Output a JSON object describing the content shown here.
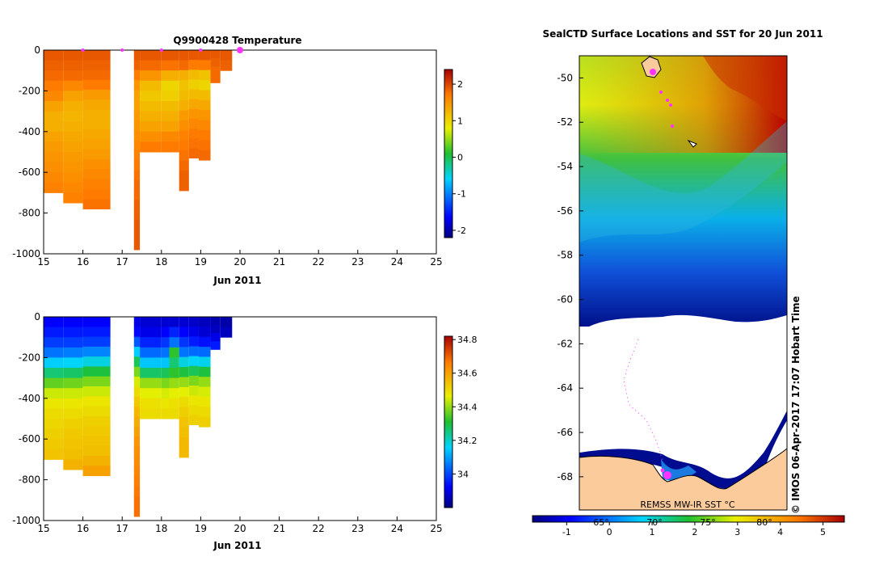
{
  "chart_data": [
    {
      "type": "heatmap",
      "title": "Q9900428  Temperature",
      "xlabel": "Jun 2011",
      "ylabel": "",
      "xlim": [
        15,
        25
      ],
      "ylim": [
        -1000,
        0
      ],
      "xticks": [
        "15",
        "16",
        "17",
        "18",
        "19",
        "20",
        "21",
        "22",
        "23",
        "24",
        "25"
      ],
      "yticks": [
        "0",
        "-200",
        "-400",
        "-600",
        "-800",
        "-1000"
      ],
      "colorbar": {
        "min": -2.2,
        "max": 2.4,
        "ticks": [
          "2",
          "1",
          "0",
          "-1",
          "-2"
        ],
        "tick_values": [
          2,
          1,
          0,
          -1,
          -2
        ]
      },
      "profiles": [
        {
          "x0": 15.0,
          "x1": 15.5,
          "depth": 700,
          "values": [
            1.9,
            1.85,
            1.8,
            1.7,
            1.6,
            1.4,
            1.3,
            1.3,
            1.4,
            1.45,
            1.5,
            1.55,
            1.6,
            1.65
          ]
        },
        {
          "x0": 15.5,
          "x1": 16.0,
          "depth": 750,
          "values": [
            1.9,
            1.85,
            1.8,
            1.6,
            1.4,
            1.3,
            1.25,
            1.3,
            1.35,
            1.4,
            1.45,
            1.5,
            1.55,
            1.6,
            1.65
          ]
        },
        {
          "x0": 16.0,
          "x1": 16.7,
          "depth": 780,
          "values": [
            1.9,
            1.85,
            1.8,
            1.7,
            1.45,
            1.35,
            1.3,
            1.3,
            1.35,
            1.4,
            1.45,
            1.55,
            1.6,
            1.65,
            1.7,
            1.75
          ]
        },
        {
          "x0": 17.3,
          "x1": 17.45,
          "depth": 980,
          "values": [
            1.9,
            1.85,
            1.7,
            1.5,
            1.4,
            1.4,
            1.45,
            1.5,
            1.55,
            1.6,
            1.65,
            1.7,
            1.75,
            1.8,
            1.8,
            1.85,
            1.85,
            1.9,
            1.9,
            1.9
          ]
        },
        {
          "x0": 17.45,
          "x1": 18.0,
          "depth": 500,
          "values": [
            1.9,
            1.8,
            1.5,
            1.2,
            1.1,
            1.2,
            1.3,
            1.4,
            1.55,
            1.7
          ]
        },
        {
          "x0": 18.0,
          "x1": 18.45,
          "depth": 500,
          "values": [
            1.9,
            1.75,
            1.3,
            1.0,
            1.05,
            1.2,
            1.3,
            1.4,
            1.6,
            1.7
          ]
        },
        {
          "x0": 18.45,
          "x1": 18.7,
          "depth": 690,
          "values": [
            1.9,
            1.8,
            1.3,
            1.15,
            1.2,
            1.3,
            1.45,
            1.55,
            1.65,
            1.7,
            1.75,
            1.8,
            1.85,
            1.85
          ]
        },
        {
          "x0": 18.7,
          "x1": 18.95,
          "depth": 530,
          "values": [
            1.9,
            1.7,
            1.2,
            1.05,
            1.2,
            1.35,
            1.5,
            1.6,
            1.7,
            1.75,
            1.8
          ]
        },
        {
          "x0": 18.95,
          "x1": 19.25,
          "depth": 540,
          "values": [
            1.9,
            1.7,
            1.15,
            1.0,
            1.2,
            1.35,
            1.5,
            1.6,
            1.7,
            1.75,
            1.8
          ]
        },
        {
          "x0": 19.25,
          "x1": 19.5,
          "depth": 160,
          "values": [
            1.9,
            1.85,
            1.8,
            1.8
          ]
        },
        {
          "x0": 19.5,
          "x1": 19.8,
          "depth": 100,
          "values": [
            1.9,
            1.85
          ]
        }
      ],
      "markers": [
        {
          "x": 16.0,
          "y": 0,
          "size": "small"
        },
        {
          "x": 17.0,
          "y": 0,
          "size": "small"
        },
        {
          "x": 18.0,
          "y": 0,
          "size": "small"
        },
        {
          "x": 19.0,
          "y": 0,
          "size": "small"
        },
        {
          "x": 20.0,
          "y": 0,
          "size": "large"
        }
      ]
    },
    {
      "type": "heatmap",
      "title": "",
      "xlabel": "Jun 2011",
      "ylabel": "",
      "xlim": [
        15,
        25
      ],
      "ylim": [
        -1000,
        0
      ],
      "xticks": [
        "15",
        "16",
        "17",
        "18",
        "19",
        "20",
        "21",
        "22",
        "23",
        "24",
        "25"
      ],
      "yticks": [
        "0",
        "-200",
        "-400",
        "-600",
        "-800",
        "-1000"
      ],
      "colorbar": {
        "min": 33.8,
        "max": 34.82,
        "ticks": [
          "34.8",
          "34.6",
          "34.4",
          "34.2",
          "34"
        ],
        "tick_values": [
          34.8,
          34.6,
          34.4,
          34.2,
          34.0
        ]
      },
      "profiles": [
        {
          "x0": 15.0,
          "x1": 15.5,
          "depth": 700,
          "values": [
            33.92,
            33.95,
            33.99,
            34.05,
            34.15,
            34.26,
            34.36,
            34.44,
            34.48,
            34.5,
            34.51,
            34.52,
            34.53,
            34.54
          ]
        },
        {
          "x0": 15.5,
          "x1": 16.0,
          "depth": 750,
          "values": [
            33.92,
            33.95,
            33.99,
            34.06,
            34.16,
            34.27,
            34.37,
            34.44,
            34.48,
            34.5,
            34.52,
            34.53,
            34.54,
            34.55,
            34.57
          ]
        },
        {
          "x0": 16.0,
          "x1": 16.7,
          "depth": 780,
          "values": [
            33.92,
            33.95,
            33.99,
            34.07,
            34.18,
            34.3,
            34.38,
            34.44,
            34.48,
            34.5,
            34.52,
            34.53,
            34.54,
            34.55,
            34.57,
            34.6
          ]
        },
        {
          "x0": 17.3,
          "x1": 17.45,
          "depth": 980,
          "values": [
            33.9,
            33.93,
            34.02,
            34.15,
            34.28,
            34.38,
            34.45,
            34.5,
            34.53,
            34.56,
            34.58,
            34.6,
            34.62,
            34.63,
            34.64,
            34.65,
            34.66,
            34.67,
            34.68,
            34.68
          ]
        },
        {
          "x0": 17.45,
          "x1": 18.0,
          "depth": 500,
          "values": [
            33.88,
            33.9,
            33.96,
            34.04,
            34.14,
            34.27,
            34.4,
            34.46,
            34.49,
            34.5
          ]
        },
        {
          "x0": 18.0,
          "x1": 18.2,
          "depth": 500,
          "values": [
            33.88,
            33.92,
            33.98,
            34.05,
            34.14,
            34.28,
            34.38,
            34.45,
            34.48,
            34.5
          ]
        },
        {
          "x0": 18.2,
          "x1": 18.45,
          "depth": 500,
          "values": [
            33.88,
            33.96,
            34.05,
            34.32,
            34.26,
            34.32,
            34.4,
            34.46,
            34.49,
            34.5
          ]
        },
        {
          "x0": 18.45,
          "x1": 18.7,
          "depth": 690,
          "values": [
            33.88,
            33.92,
            33.98,
            34.05,
            34.18,
            34.3,
            34.4,
            34.46,
            34.5,
            34.52,
            34.54,
            34.55,
            34.56,
            34.56
          ]
        },
        {
          "x0": 18.7,
          "x1": 18.95,
          "depth": 530,
          "values": [
            33.87,
            33.9,
            33.95,
            34.04,
            34.16,
            34.28,
            34.38,
            34.44,
            34.48,
            34.5,
            34.52
          ]
        },
        {
          "x0": 18.95,
          "x1": 19.25,
          "depth": 540,
          "values": [
            33.86,
            33.88,
            33.94,
            34.04,
            34.17,
            34.3,
            34.4,
            34.45,
            34.48,
            34.5,
            34.52
          ]
        },
        {
          "x0": 19.25,
          "x1": 19.5,
          "depth": 160,
          "values": [
            33.85,
            33.86,
            33.9,
            33.95
          ]
        },
        {
          "x0": 19.5,
          "x1": 19.8,
          "depth": 100,
          "values": [
            33.84,
            33.86
          ]
        }
      ]
    },
    {
      "type": "heatmap",
      "title": "SealCTD Surface Locations and SST for 20 Jun 2011",
      "xlabel": "",
      "ylabel": "",
      "ylim": [
        -69.5,
        -49
      ],
      "yticks": [
        "-50",
        "-52",
        "-54",
        "-56",
        "-58",
        "-60",
        "-62",
        "-64",
        "-66",
        "-68"
      ],
      "ytick_values": [
        -50,
        -52,
        -54,
        -56,
        -58,
        -60,
        -62,
        -64,
        -66,
        -68
      ],
      "colorbar": {
        "min": -1.8,
        "max": 5.5,
        "ticks": [
          "-1",
          "0",
          "1",
          "2",
          "3",
          "4",
          "5"
        ],
        "tick_values": [
          -1,
          0,
          1,
          2,
          3,
          4,
          5
        ],
        "label": "REMSS MW-IR SST °C"
      },
      "x_partial_labels": [
        "65°",
        "70°",
        "75°",
        "80°"
      ],
      "credit": "© IMOS 06-Apr-2017 17:07 Hobart Time",
      "colors": {
        "land": "#fbcb9c",
        "ice_edge": "#000080",
        "track": "#ff33ff"
      }
    }
  ]
}
